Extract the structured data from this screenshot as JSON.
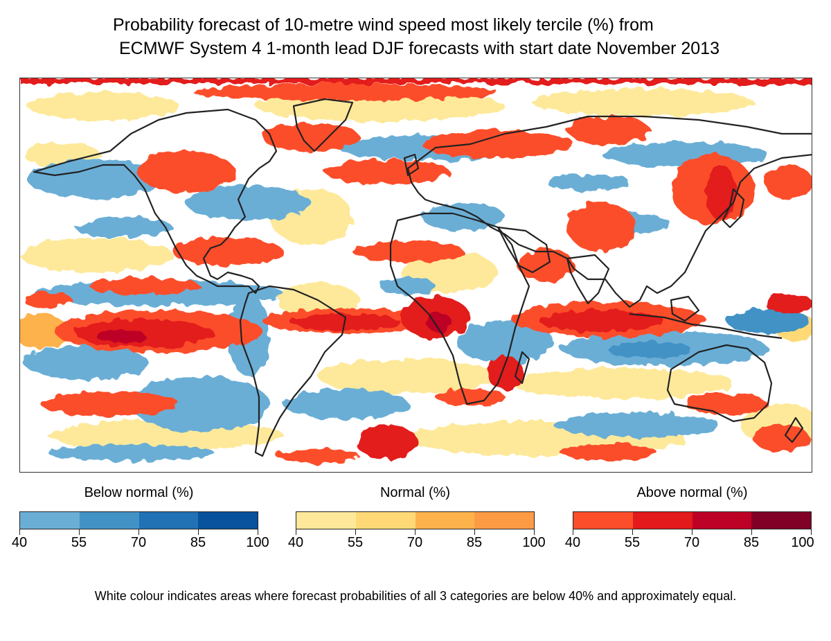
{
  "title": {
    "line1": "Probability forecast of 10-metre wind speed most likely tercile (%) from",
    "line2": "ECMWF System 4 1-month lead DJF forecasts with start date November  2013"
  },
  "legends": [
    {
      "id": "below",
      "title": "Below normal (%)",
      "colors": [
        "#6aaed6",
        "#4292c6",
        "#2171b5",
        "#08519c"
      ],
      "ticks": [
        "40",
        "55",
        "70",
        "85",
        "100"
      ]
    },
    {
      "id": "normal",
      "title": "Normal (%)",
      "colors": [
        "#fee99a",
        "#fed976",
        "#feb24c",
        "#fd9b45"
      ],
      "ticks": [
        "40",
        "55",
        "70",
        "85",
        "100"
      ]
    },
    {
      "id": "above",
      "title": "Above normal (%)",
      "colors": [
        "#fc4e2a",
        "#e31a1c",
        "#bd0026",
        "#800026"
      ],
      "ticks": [
        "40",
        "55",
        "70",
        "85",
        "100"
      ]
    }
  ],
  "note": "White colour indicates areas where forecast probabilities of all 3 categories are below 40% and approximately equal."
}
